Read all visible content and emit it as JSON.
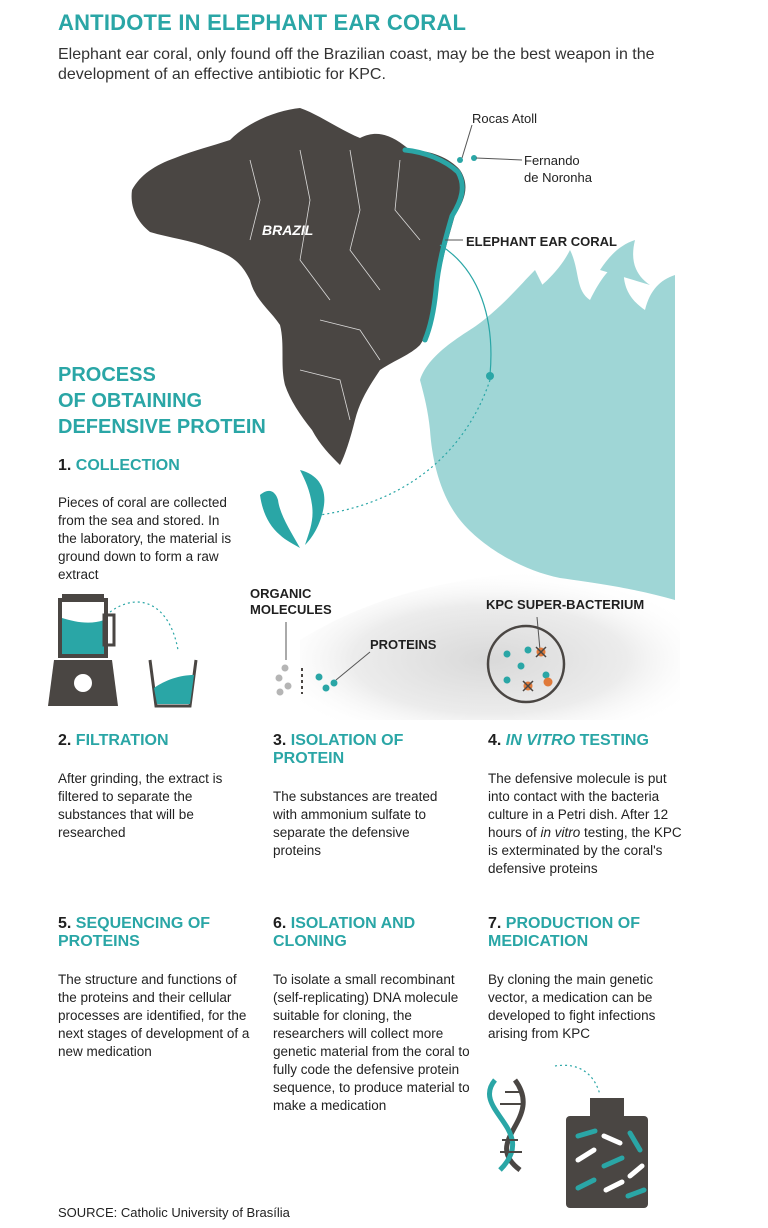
{
  "header": {
    "title": "ANTIDOTE IN ELEPHANT EAR CORAL",
    "subtitle": "Elephant ear coral, only found off the Brazilian coast, may be the best weapon in the development of an effective antibiotic for KPC."
  },
  "map": {
    "country_label": "BRAZIL",
    "rocas_label": "Rocas Atoll",
    "fernando_label_line1": "Fernando",
    "fernando_label_line2": "de Noronha",
    "coral_label": "ELEPHANT EAR CORAL"
  },
  "process": {
    "title_line1": "PROCESS",
    "title_line2": "OF OBTAINING",
    "title_line3": "DEFENSIVE PROTEIN"
  },
  "illustrations": {
    "organic_molecules_line1": "ORGANIC",
    "organic_molecules_line2": "MOLECULES",
    "proteins_label": "PROTEINS",
    "kpc_label": "KPC SUPER-BACTERIUM"
  },
  "steps": [
    {
      "num": "1.",
      "label": "COLLECTION",
      "body": "Pieces of coral are collected from the sea and stored. In the laboratory, the material is ground down to form a raw extract"
    },
    {
      "num": "2.",
      "label": "FILTRATION",
      "body": "After grinding, the extract is filtered to separate the substances that will be researched"
    },
    {
      "num": "3.",
      "label": "ISOLATION OF PROTEIN",
      "body": "The substances are treated with ammonium sulfate to separate the defensive proteins"
    },
    {
      "num": "4.",
      "label_italic": "IN VITRO",
      "label": " TESTING",
      "body_part1": "The defensive molecule is put into contact with the bacteria culture in a Petri dish. After 12 hours of ",
      "body_italic": "in vitro",
      "body_part2": " testing, the KPC is exterminated by the coral's defensive proteins"
    },
    {
      "num": "5.",
      "label": "SEQUENCING OF PROTEINS",
      "body": "The structure and functions of the proteins and their cellular processes are identified, for the next stages of development of a new medication"
    },
    {
      "num": "6.",
      "label": "ISOLATION AND CLONING",
      "body": "To isolate a small recombinant (self-replicating) DNA molecule suitable for cloning, the researchers will collect more genetic material from the coral to fully code the defensive protein sequence, to produce material to make a medication"
    },
    {
      "num": "7.",
      "label": "PRODUCTION OF MEDICATION",
      "body": "By cloning the main genetic vector, a medication can be developed to fight infections arising from KPC"
    }
  ],
  "footer": {
    "source": "SOURCE: Catholic University of Brasília"
  },
  "colors": {
    "teal": "#2aa6a6",
    "coral": "#9fd6d6",
    "land": "#4a4643",
    "grey_fog": "#e6e6e6"
  }
}
